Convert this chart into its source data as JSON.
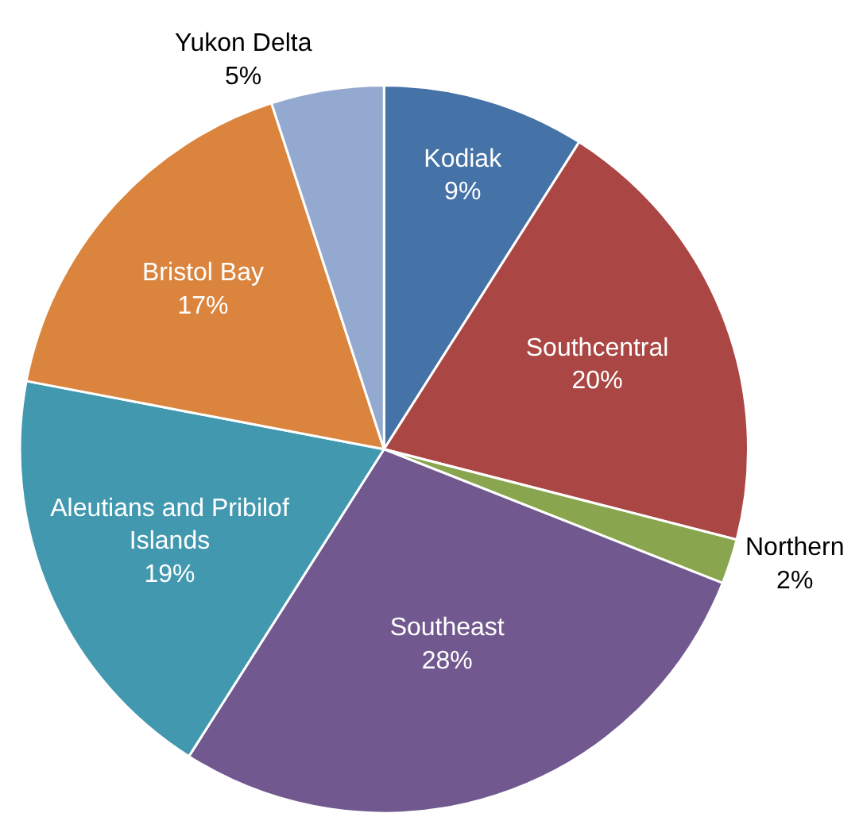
{
  "chart_data": {
    "type": "pie",
    "categories": [
      "Kodiak",
      "Southcentral",
      "Northern",
      "Southeast",
      "Aleutians and Pribilof Islands",
      "Bristol Bay",
      "Yukon Delta"
    ],
    "values": [
      9,
      20,
      2,
      28,
      19,
      17,
      5
    ],
    "colors": [
      "#4572a7",
      "#aa4643",
      "#89a54e",
      "#71588f",
      "#4198af",
      "#db843d",
      "#93a9cf"
    ],
    "value_labels": [
      "9%",
      "20%",
      "2%",
      "28%",
      "19%",
      "17%",
      "5%"
    ]
  }
}
